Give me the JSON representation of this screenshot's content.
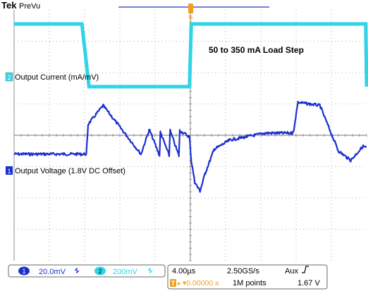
{
  "header": {
    "brand": "Tek",
    "mode": "PreVu"
  },
  "annotation": "50 to 350 mA Load Step",
  "channels": [
    {
      "number": "1",
      "label": "Output Voltage (1.8V DC Offset)",
      "scale": "20.0mV",
      "coupling_icon": "bandwidth-limit-icon",
      "color": "#1a2fd0"
    },
    {
      "number": "2",
      "label": "Output Current (mA/mV)",
      "scale": "200mV",
      "coupling_icon": "bandwidth-limit-icon",
      "color": "#2fd4e8"
    }
  ],
  "timebase": {
    "horizontal": "4.00µs",
    "sample_rate": "2.50GS/s",
    "points": "1M points",
    "delay": "▾0.00000 s"
  },
  "trigger": {
    "source": "Aux",
    "slope_icon": "rising-edge-icon",
    "level": "1.67 V"
  },
  "colors": {
    "background": "#ffffff",
    "grid": "#9a9a9a",
    "trigger_marker": "#f0a020",
    "ch1": "#1a2fd0",
    "ch2": "#2fd4e8"
  },
  "chart_data": {
    "type": "line",
    "title": "50 to 350 mA Load Step",
    "x_divisions": 10,
    "y_divisions": 8,
    "x_unit": "µs",
    "x_per_div": 4.0,
    "xlim": [
      -20,
      20
    ],
    "grid": true,
    "series": [
      {
        "name": "Output Current (mA/mV)",
        "channel": "2",
        "volts_per_div": "200mV",
        "x": [
          -20,
          -12.3,
          -11.5,
          -0.1,
          0.1,
          19.9,
          20.0
        ],
        "y_div": [
          3.55,
          3.55,
          1.55,
          1.55,
          3.55,
          3.55,
          1.55
        ],
        "x_steps": [
          -20,
          -12.3,
          -11.5,
          -0.1,
          0.1,
          19.9
        ],
        "y_steps": [
          3.55,
          3.55,
          1.55,
          1.55,
          3.55,
          3.55
        ]
      },
      {
        "name": "Output Voltage (1.8V DC Offset)",
        "channel": "1",
        "volts_per_div": "20.0mV",
        "x": [
          -20,
          -11.8,
          -11.6,
          -9.9,
          -5.6,
          -4.7,
          -4.6,
          -3.5,
          -3.4,
          -2.4,
          -2.3,
          -1.3,
          -1.2,
          -0.1,
          0.1,
          0.5,
          1.1,
          1.7,
          2.7,
          4.5,
          8.5,
          11.5,
          11.7,
          12.2,
          14.7,
          16.8,
          18.2,
          19.6,
          20
        ],
        "y_div": [
          -0.6,
          -0.6,
          0.35,
          0.95,
          -0.6,
          0.15,
          0.15,
          -0.65,
          0.1,
          -0.65,
          0.15,
          -0.65,
          0.15,
          -0.05,
          -0.8,
          -1.5,
          -1.78,
          -1.2,
          -0.45,
          -0.15,
          0.07,
          0.07,
          0.1,
          1.05,
          0.95,
          -0.5,
          -0.8,
          -0.35,
          -0.4
        ]
      }
    ]
  }
}
